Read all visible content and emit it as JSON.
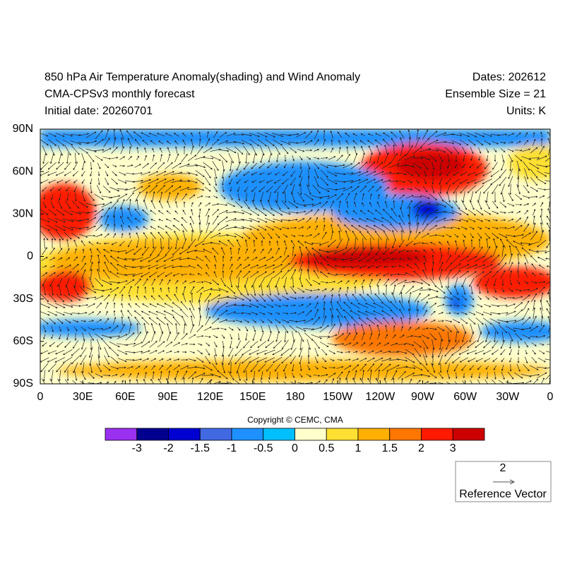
{
  "header": {
    "left": [
      "850 hPa Air Temperature Anomaly(shading) and Wind Anomaly",
      "CMA-CPSv3 monthly forecast",
      "Initial date: 20260701"
    ],
    "right": [
      "Dates: 202612",
      "Ensemble Size = 21",
      "Units: K"
    ]
  },
  "map": {
    "lat_labels": [
      "90N",
      "60N",
      "30N",
      "0",
      "30S",
      "60S",
      "90S"
    ],
    "lon_labels": [
      "0",
      "30E",
      "60E",
      "90E",
      "120E",
      "150E",
      "180",
      "150W",
      "120W",
      "90W",
      "60W",
      "30W",
      "0"
    ]
  },
  "copyright": "Copyright © CEMC, CMA",
  "colorbar": {
    "colors": [
      "#9a30f0",
      "#00008f",
      "#0000d0",
      "#4169e1",
      "#1e90ff",
      "#00bfff",
      "#ffffcc",
      "#ffe033",
      "#ffb000",
      "#ff7700",
      "#ff1a00",
      "#cc0000"
    ],
    "labels": [
      -3,
      -2,
      -1.5,
      -1,
      -0.5,
      0,
      0.5,
      1,
      1.5,
      2,
      3
    ]
  },
  "reference_vector": {
    "magnitude": "2",
    "label": "Reference Vector"
  }
}
